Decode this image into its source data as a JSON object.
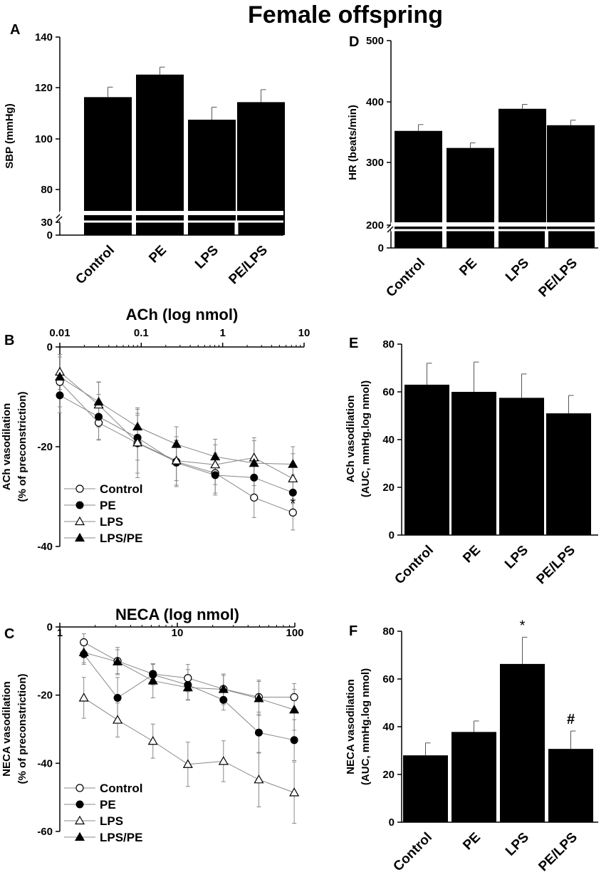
{
  "figure_title": "Female offspring",
  "chart_data": [
    {
      "panel": "A",
      "type": "bar",
      "categories": [
        "Control",
        "PE",
        "LPS",
        "PE/LPS"
      ],
      "values": [
        116,
        125,
        107,
        114
      ],
      "errors": [
        4,
        3,
        5,
        5
      ],
      "ylabel": "SBP (mmHg)",
      "yticks": [
        "140",
        "120",
        "100",
        "80",
        "30",
        "0"
      ],
      "ylim": [
        70,
        140
      ],
      "axis_break": true,
      "annotations": []
    },
    {
      "panel": "D",
      "type": "bar",
      "categories": [
        "Control",
        "PE",
        "LPS",
        "PE/LPS"
      ],
      "values": [
        357,
        330,
        392,
        366
      ],
      "errors": [
        10,
        8,
        7,
        8
      ],
      "ylabel": "HR (beats/min)",
      "yticks": [
        "500",
        "400",
        "300",
        "200",
        "0"
      ],
      "ylim": [
        210,
        500
      ],
      "axis_break": true,
      "annotations": []
    },
    {
      "panel": "B",
      "type": "line",
      "xtitle": "ACh (log nmol)",
      "xticks": [
        "0.01",
        "0.1",
        "1",
        "10"
      ],
      "xlim_log": [
        0.01,
        10
      ],
      "x": [
        0.01,
        0.03,
        0.09,
        0.27,
        0.81,
        2.43,
        7.29
      ],
      "ylabel_lines": [
        "ACh vasodilation",
        "(% of preconstriction)"
      ],
      "yticks": [
        "0",
        "-20",
        "-40"
      ],
      "ylim": [
        -40,
        0
      ],
      "series": [
        {
          "name": "Control",
          "marker": "open-circle",
          "values": [
            -7,
            -15.2,
            -19.3,
            -23,
            -25.3,
            -30.2,
            -33.2
          ],
          "errors": [
            5,
            3.5,
            6,
            5,
            4,
            4,
            3.5
          ]
        },
        {
          "name": "PE",
          "marker": "filled-circle",
          "values": [
            -9.7,
            -14,
            -18.2,
            -23.2,
            -25.7,
            -26.2,
            -29.2
          ],
          "errors": [
            3.5,
            4.5,
            4.5,
            4.5,
            4,
            3.5,
            3.5
          ]
        },
        {
          "name": "LPS",
          "marker": "open-triangle",
          "values": [
            -5,
            -11.6,
            -19.2,
            -22.8,
            -23.6,
            -22.2,
            -26.4
          ],
          "errors": [
            3.5,
            4.5,
            7,
            4,
            4,
            4,
            5
          ]
        },
        {
          "name": "LPS/PE",
          "marker": "filled-triangle",
          "values": [
            -6,
            -11,
            -16,
            -19.5,
            -22,
            -23.3,
            -23.5
          ],
          "errors": [
            4,
            4,
            3.5,
            3.5,
            3.5,
            4.5,
            3.5
          ]
        }
      ],
      "annotations": [
        {
          "text": "*",
          "x": 7.29,
          "y": -32
        }
      ]
    },
    {
      "panel": "E",
      "type": "bar",
      "categories": [
        "Control",
        "PE",
        "LPS",
        "PE/LPS"
      ],
      "values": [
        63,
        60,
        57.5,
        51
      ],
      "errors": [
        9,
        12.5,
        10,
        7.5
      ],
      "ylabel_lines": [
        "ACh vasodilation",
        "(AUC, mmHg.log nmol)"
      ],
      "yticks": [
        "80",
        "60",
        "40",
        "20",
        "0"
      ],
      "ylim": [
        0,
        80
      ],
      "annotations": []
    },
    {
      "panel": "C",
      "type": "line",
      "xtitle": "NECA (log nmol)",
      "xticks": [
        "1",
        "10",
        "100"
      ],
      "xlim_log": [
        1,
        100
      ],
      "x": [
        1.6,
        3.1,
        6.2,
        12.3,
        24.7,
        49.4,
        98.8
      ],
      "ylabel_lines": [
        "NECA vasodilation",
        "(% of preconstriction)"
      ],
      "yticks": [
        "0",
        "-20",
        "-40",
        "-60"
      ],
      "ylim": [
        -60,
        0
      ],
      "series": [
        {
          "name": "Control",
          "marker": "open-circle",
          "values": [
            -4.5,
            -10,
            -13.8,
            -15,
            -18.2,
            -20.6,
            -20.6
          ],
          "errors": [
            2.5,
            4,
            3,
            4,
            4,
            5,
            4
          ]
        },
        {
          "name": "PE",
          "marker": "filled-circle",
          "values": [
            -8,
            -20.8,
            -14,
            -17,
            -21.4,
            -31,
            -33.2
          ],
          "errors": [
            3,
            6,
            3,
            4.5,
            3,
            6,
            6
          ]
        },
        {
          "name": "LPS",
          "marker": "open-triangle",
          "values": [
            -20.8,
            -27.3,
            -33.5,
            -40.3,
            -39.4,
            -44.8,
            -48.6
          ],
          "errors": [
            6,
            5,
            5,
            6.5,
            6,
            8,
            9
          ]
        },
        {
          "name": "LPS/PE",
          "marker": "filled-triangle",
          "values": [
            -7.5,
            -10.2,
            -15.8,
            -17.8,
            -18.3,
            -21,
            -24.3
          ],
          "errors": [
            3,
            3.5,
            5,
            3.5,
            4.5,
            5,
            6
          ]
        }
      ],
      "annotations": []
    },
    {
      "panel": "F",
      "type": "bar",
      "categories": [
        "Control",
        "PE",
        "LPS",
        "PE/LPS"
      ],
      "values": [
        28,
        37.8,
        66.3,
        30.7
      ],
      "errors": [
        5.2,
        4.6,
        11.2,
        7.5
      ],
      "ylabel_lines": [
        "NECA vasodilation",
        "(AUC, mmHg.log nmol)"
      ],
      "yticks": [
        "80",
        "60",
        "40",
        "20",
        "0"
      ],
      "ylim": [
        0,
        80
      ],
      "annotations": [
        {
          "text": "*",
          "bar": 2
        },
        {
          "text": "#",
          "bar": 3
        }
      ]
    }
  ]
}
